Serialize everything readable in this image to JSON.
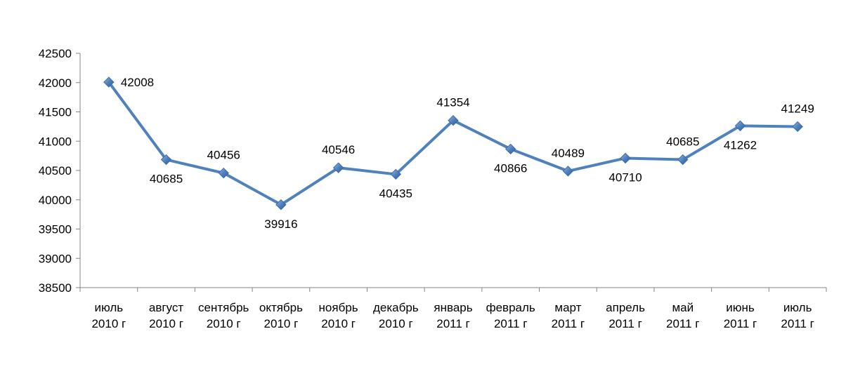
{
  "chart_data": {
    "type": "line",
    "title": "",
    "xlabel": "",
    "ylabel": "",
    "ylim": [
      38500,
      42500
    ],
    "y_ticks": [
      "42500",
      "42000",
      "41500",
      "41000",
      "40500",
      "40000",
      "39500",
      "39000",
      "38500"
    ],
    "y_tick_values": [
      42500,
      42000,
      41500,
      41000,
      40500,
      40000,
      39500,
      39000,
      38500
    ],
    "categories": [
      [
        "июль",
        "2010 г"
      ],
      [
        "август",
        "2010 г"
      ],
      [
        "сентябрь",
        "2010 г"
      ],
      [
        "октябрь",
        "2010 г"
      ],
      [
        "ноябрь",
        "2010 г"
      ],
      [
        "декабрь",
        "2010 г"
      ],
      [
        "январь",
        "2011 г"
      ],
      [
        "февраль",
        "2011 г"
      ],
      [
        "март",
        "2011 г"
      ],
      [
        "апрель",
        "2011 г"
      ],
      [
        "май",
        "2011 г"
      ],
      [
        "июнь",
        "2011 г"
      ],
      [
        "июль",
        "2011 г"
      ]
    ],
    "series": [
      {
        "values": [
          42008,
          40685,
          40456,
          39916,
          40546,
          40435,
          41354,
          40866,
          40489,
          40710,
          40685,
          41262,
          41249
        ],
        "labels": [
          "42008",
          "40685",
          "40456",
          "39916",
          "40546",
          "40435",
          "41354",
          "40866",
          "40489",
          "40710",
          "40685",
          "41262",
          "41249"
        ],
        "label_positions": [
          "right",
          "below",
          "above",
          "below",
          "above",
          "below",
          "above",
          "below",
          "above",
          "below",
          "above",
          "below",
          "above"
        ],
        "color": "#4F81BD",
        "marker": "diamond"
      }
    ],
    "grid": false,
    "legend": "none"
  }
}
